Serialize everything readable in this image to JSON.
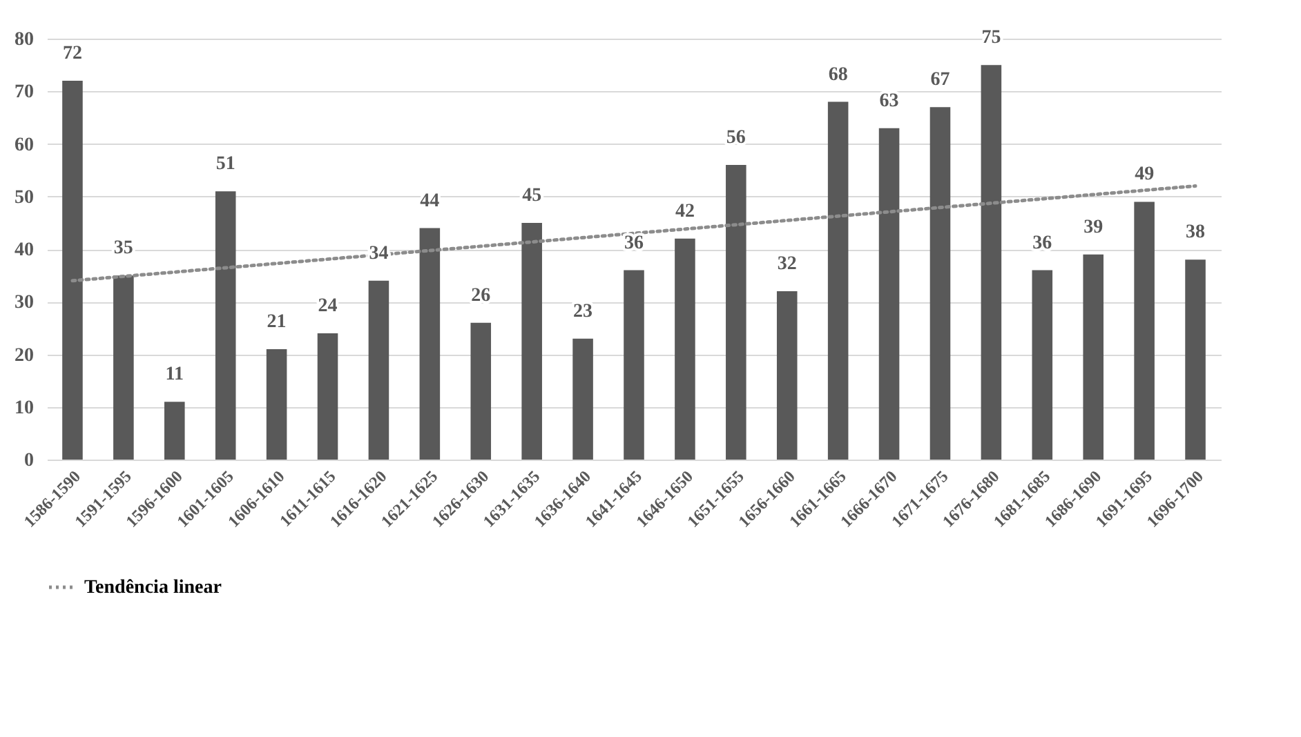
{
  "chart_data": {
    "type": "bar",
    "categories": [
      "1586-1590",
      "1591-1595",
      "1596-1600",
      "1601-1605",
      "1606-1610",
      "1611-1615",
      "1616-1620",
      "1621-1625",
      "1626-1630",
      "1631-1635",
      "1636-1640",
      "1641-1645",
      "1646-1650",
      "1651-1655",
      "1656-1660",
      "1661-1665",
      "1666-1670",
      "1671-1675",
      "1676-1680",
      "1681-1685",
      "1686-1690",
      "1691-1695",
      "1696-1700"
    ],
    "series": [
      {
        "color": "#595959",
        "values": [
          72,
          35,
          11,
          51,
          21,
          24,
          34,
          44,
          26,
          45,
          23,
          36,
          42,
          56,
          32,
          68,
          63,
          67,
          75,
          36,
          39,
          49,
          38
        ],
        "value_labels": [
          "72",
          "35",
          "11",
          "51",
          "21",
          "24",
          "34",
          "44",
          "26",
          "45",
          "23",
          "36",
          "42",
          "56",
          "32",
          "68",
          "63",
          "67",
          "75",
          "36",
          "39",
          "49",
          "38"
        ]
      },
      {
        "type": "line",
        "name": "Tendência linear",
        "color": "#8c8c8c",
        "line_style": "dotted",
        "x": [
          "1586-1590",
          "1696-1700"
        ],
        "values": [
          34,
          52
        ]
      }
    ],
    "ylim": [
      0,
      80
    ],
    "yticks": [
      0,
      10,
      20,
      30,
      40,
      50,
      60,
      70,
      80
    ],
    "grid": "y",
    "legend": "bottom"
  }
}
